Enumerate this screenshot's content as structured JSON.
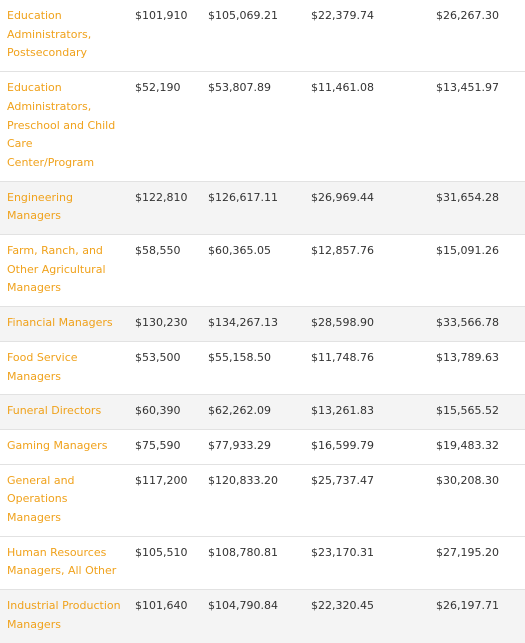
{
  "colors": {
    "link": "#f0a21c",
    "row_shade": "#f4f4f4",
    "text": "#333333",
    "divider": "#e2e2e2"
  },
  "rows": [
    {
      "occupation": "Education Administrators, Postsecondary",
      "c1": "$101,910",
      "c2": "$105,069.21",
      "c3": "$22,379.74",
      "c4": "$26,267.30",
      "shaded": false
    },
    {
      "occupation": "Education Administrators, Preschool and Child Care Center/Program",
      "c1": "$52,190",
      "c2": "$53,807.89",
      "c3": "$11,461.08",
      "c4": "$13,451.97",
      "shaded": false
    },
    {
      "occupation": "Engineering Managers",
      "c1": "$122,810",
      "c2": "$126,617.11",
      "c3": "$26,969.44",
      "c4": "$31,654.28",
      "shaded": true
    },
    {
      "occupation": "Farm, Ranch, and Other Agricultural Managers",
      "c1": "$58,550",
      "c2": "$60,365.05",
      "c3": "$12,857.76",
      "c4": "$15,091.26",
      "shaded": false
    },
    {
      "occupation": "Financial Managers",
      "c1": "$130,230",
      "c2": "$134,267.13",
      "c3": "$28,598.90",
      "c4": "$33,566.78",
      "shaded": true
    },
    {
      "occupation": "Food Service Managers",
      "c1": "$53,500",
      "c2": "$55,158.50",
      "c3": "$11,748.76",
      "c4": "$13,789.63",
      "shaded": false
    },
    {
      "occupation": "Funeral Directors",
      "c1": "$60,390",
      "c2": "$62,262.09",
      "c3": "$13,261.83",
      "c4": "$15,565.52",
      "shaded": true
    },
    {
      "occupation": "Gaming Managers",
      "c1": "$75,590",
      "c2": "$77,933.29",
      "c3": "$16,599.79",
      "c4": "$19,483.32",
      "shaded": false
    },
    {
      "occupation": "General and Operations Managers",
      "c1": "$117,200",
      "c2": "$120,833.20",
      "c3": "$25,737.47",
      "c4": "$30,208.30",
      "shaded": false
    },
    {
      "occupation": "Human Resources Managers, All Other",
      "c1": "$105,510",
      "c2": "$108,780.81",
      "c3": "$23,170.31",
      "c4": "$27,195.20",
      "shaded": false
    },
    {
      "occupation": "Industrial Production Managers",
      "c1": "$101,640",
      "c2": "$104,790.84",
      "c3": "$22,320.45",
      "c4": "$26,197.71",
      "shaded": true
    }
  ]
}
